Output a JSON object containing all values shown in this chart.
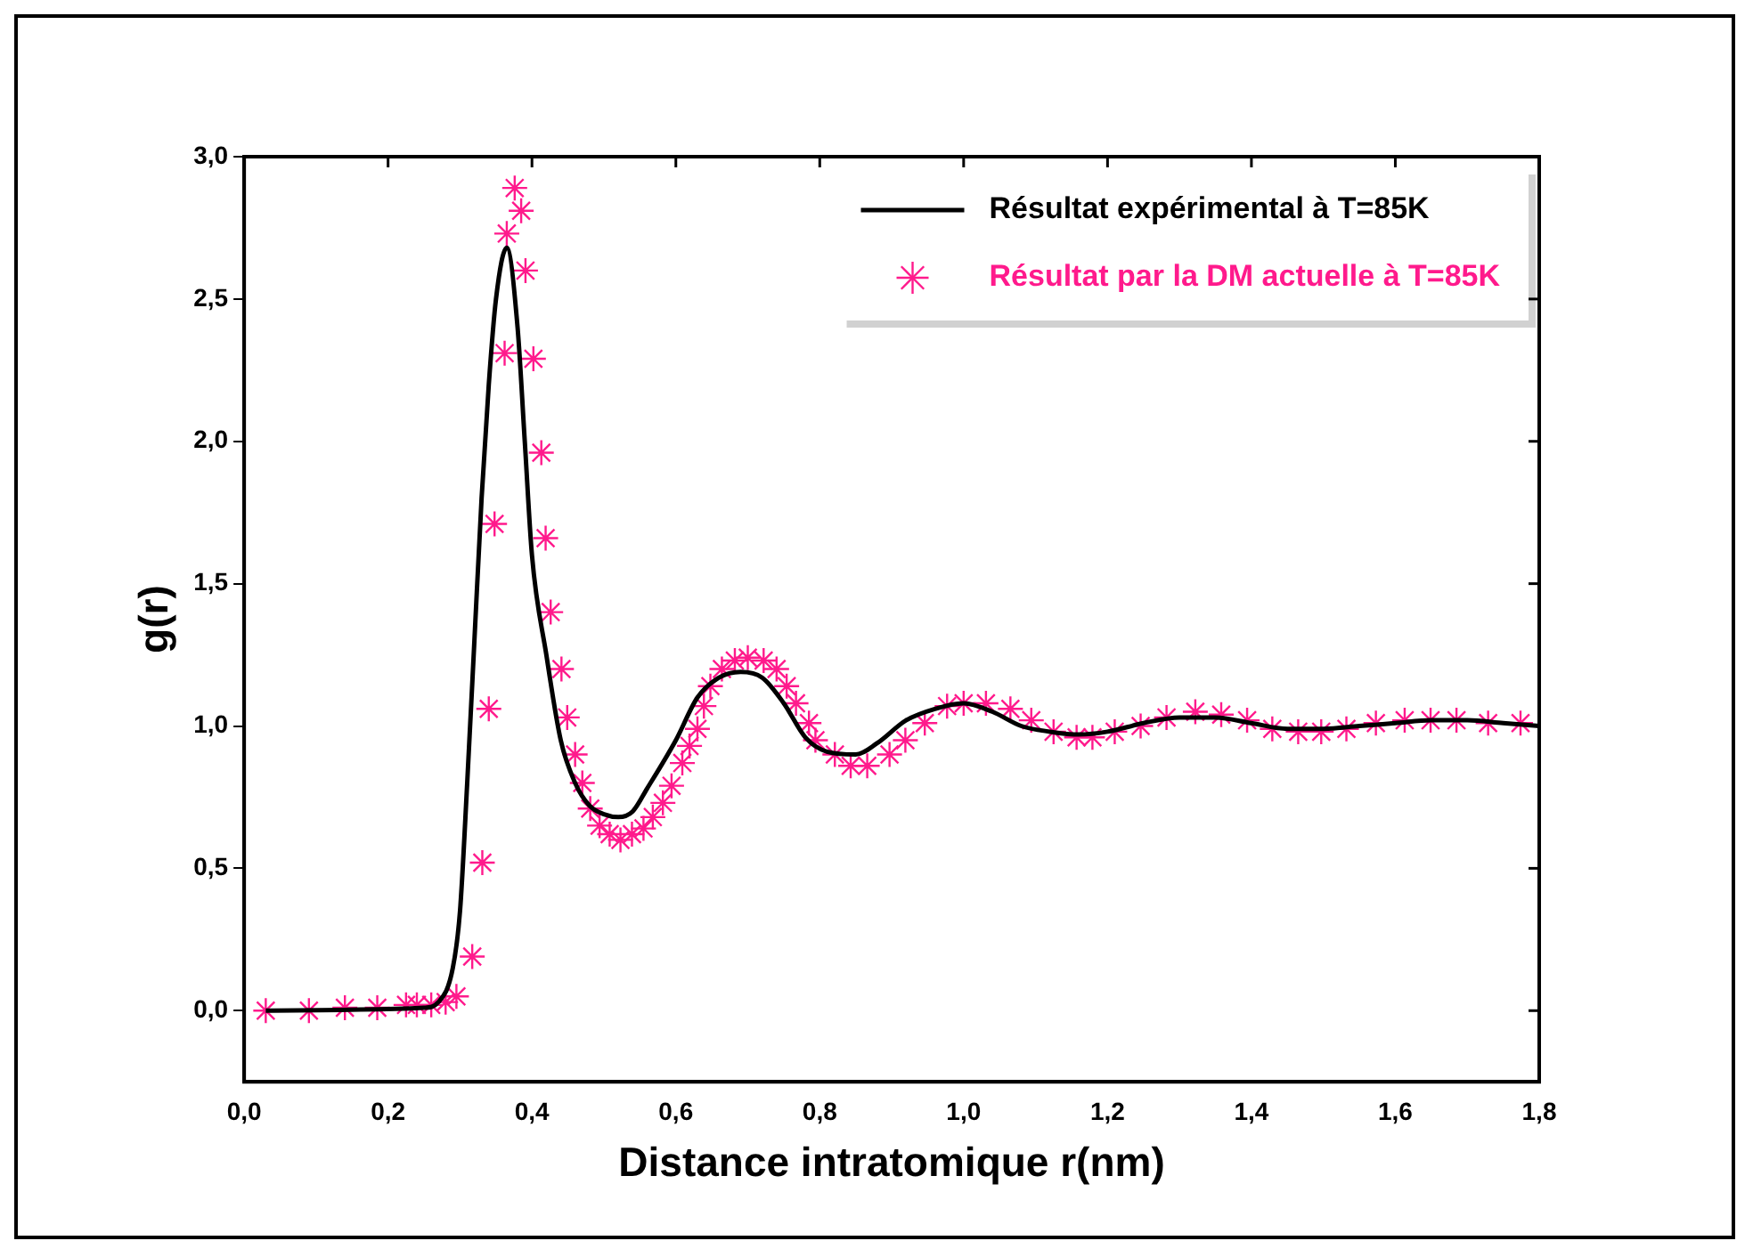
{
  "chart_data": {
    "type": "line",
    "xlabel": "Distance intratomique r(nm)",
    "ylabel": "g(r)",
    "xlim": [
      0,
      1.8
    ],
    "ylim": [
      -0.25,
      3.0
    ],
    "xticks": [
      {
        "value": 0,
        "label": "0,0"
      },
      {
        "value": 0.2,
        "label": "0,2"
      },
      {
        "value": 0.4,
        "label": "0,4"
      },
      {
        "value": 0.6,
        "label": "0,6"
      },
      {
        "value": 0.8,
        "label": "0,8"
      },
      {
        "value": 1.0,
        "label": "1,0"
      },
      {
        "value": 1.2,
        "label": "1,2"
      },
      {
        "value": 1.4,
        "label": "1,4"
      },
      {
        "value": 1.6,
        "label": "1,6"
      },
      {
        "value": 1.8,
        "label": "1,8"
      }
    ],
    "yticks": [
      {
        "value": 0,
        "label": "0,0"
      },
      {
        "value": 0.5,
        "label": "0,5"
      },
      {
        "value": 1.0,
        "label": "1,0"
      },
      {
        "value": 1.5,
        "label": "1,5"
      },
      {
        "value": 2.0,
        "label": "2,0"
      },
      {
        "value": 2.5,
        "label": "2,5"
      },
      {
        "value": 3.0,
        "label": "3,0"
      }
    ],
    "grid": false,
    "legend": "top right",
    "series": [
      {
        "name": "Résultat expérimental à T=85K",
        "color": "#000000",
        "line_style": "solid",
        "marker": "none",
        "x": [
          0.03,
          0.25,
          0.27,
          0.29,
          0.3,
          0.31,
          0.32,
          0.33,
          0.34,
          0.35,
          0.365,
          0.38,
          0.39,
          0.4,
          0.42,
          0.44,
          0.46,
          0.48,
          0.5,
          0.52,
          0.54,
          0.56,
          0.6,
          0.63,
          0.66,
          0.69,
          0.72,
          0.75,
          0.78,
          0.81,
          0.85,
          0.88,
          0.92,
          0.96,
          1.0,
          1.04,
          1.08,
          1.12,
          1.16,
          1.2,
          1.25,
          1.3,
          1.35,
          1.4,
          1.45,
          1.5,
          1.55,
          1.6,
          1.65,
          1.7,
          1.75,
          1.8
        ],
        "values": [
          0,
          0.01,
          0.03,
          0.15,
          0.35,
          0.8,
          1.3,
          1.8,
          2.2,
          2.5,
          2.68,
          2.4,
          2.0,
          1.6,
          1.25,
          0.95,
          0.8,
          0.72,
          0.69,
          0.68,
          0.7,
          0.78,
          0.95,
          1.1,
          1.17,
          1.19,
          1.17,
          1.08,
          0.96,
          0.91,
          0.9,
          0.94,
          1.02,
          1.06,
          1.08,
          1.05,
          1.0,
          0.98,
          0.97,
          0.98,
          1.01,
          1.03,
          1.03,
          1.01,
          0.99,
          0.99,
          1.0,
          1.01,
          1.02,
          1.02,
          1.01,
          1.0
        ]
      },
      {
        "name": "Résultat par la DM actuelle à T=85K",
        "type": "scatter",
        "color": "#ff1a8c",
        "marker": "cross",
        "x": [
          0.03,
          0.09,
          0.14,
          0.185,
          0.225,
          0.24,
          0.26,
          0.28,
          0.295,
          0.317,
          0.331,
          0.34,
          0.348,
          0.362,
          0.365,
          0.376,
          0.385,
          0.391,
          0.402,
          0.413,
          0.419,
          0.426,
          0.441,
          0.449,
          0.46,
          0.47,
          0.481,
          0.494,
          0.508,
          0.523,
          0.539,
          0.555,
          0.568,
          0.582,
          0.594,
          0.609,
          0.619,
          0.63,
          0.639,
          0.648,
          0.664,
          0.682,
          0.7,
          0.722,
          0.74,
          0.754,
          0.767,
          0.785,
          0.794,
          0.821,
          0.843,
          0.866,
          0.897,
          0.919,
          0.946,
          0.977,
          1.0,
          1.031,
          1.065,
          1.094,
          1.125,
          1.157,
          1.179,
          1.21,
          1.246,
          1.282,
          1.322,
          1.358,
          1.394,
          1.429,
          1.465,
          1.497,
          1.532,
          1.573,
          1.613,
          1.649,
          1.685,
          1.729,
          1.774
        ],
        "values": [
          0,
          0,
          0.01,
          0.01,
          0.02,
          0.02,
          0.02,
          0.03,
          0.05,
          0.19,
          0.52,
          1.06,
          1.71,
          2.31,
          2.73,
          2.89,
          2.81,
          2.6,
          2.29,
          1.96,
          1.66,
          1.4,
          1.2,
          1.03,
          0.9,
          0.8,
          0.71,
          0.65,
          0.62,
          0.6,
          0.62,
          0.64,
          0.68,
          0.73,
          0.79,
          0.87,
          0.93,
          0.99,
          1.07,
          1.14,
          1.2,
          1.23,
          1.24,
          1.23,
          1.2,
          1.14,
          1.08,
          1.01,
          0.95,
          0.9,
          0.86,
          0.86,
          0.9,
          0.95,
          1.01,
          1.07,
          1.08,
          1.08,
          1.06,
          1.02,
          0.98,
          0.96,
          0.96,
          0.98,
          1.0,
          1.03,
          1.05,
          1.04,
          1.02,
          0.99,
          0.98,
          0.98,
          0.99,
          1.01,
          1.02,
          1.02,
          1.02,
          1.01,
          1.01
        ]
      }
    ]
  }
}
